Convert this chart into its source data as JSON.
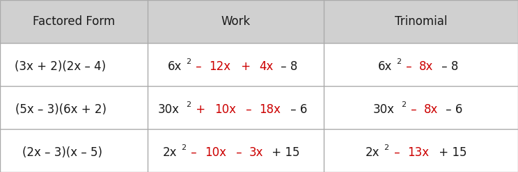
{
  "headers": [
    "Factored Form",
    "Work",
    "Trinomial"
  ],
  "header_bg": "#d0d0d0",
  "table_bg": "#ffffff",
  "border_color": "#aaaaaa",
  "col_boundaries": [
    0.0,
    0.285,
    0.625,
    1.0
  ],
  "black": "#1a1a1a",
  "red": "#cc0000",
  "rows": [
    {
      "col0": [
        {
          "t": "(3x + 2)(2x – 4)",
          "c": "#1a1a1a",
          "s": false
        }
      ],
      "col1": [
        {
          "t": "6x",
          "c": "#1a1a1a",
          "s": false
        },
        {
          "t": "2",
          "c": "#1a1a1a",
          "s": true
        },
        {
          "t": " – ",
          "c": "#cc0000",
          "s": false
        },
        {
          "t": "12x",
          "c": "#cc0000",
          "s": false
        },
        {
          "t": " + ",
          "c": "#cc0000",
          "s": false
        },
        {
          "t": "4x",
          "c": "#cc0000",
          "s": false
        },
        {
          "t": " – 8",
          "c": "#1a1a1a",
          "s": false
        }
      ],
      "col2": [
        {
          "t": "6x",
          "c": "#1a1a1a",
          "s": false
        },
        {
          "t": "2",
          "c": "#1a1a1a",
          "s": true
        },
        {
          "t": " – ",
          "c": "#cc0000",
          "s": false
        },
        {
          "t": "8x",
          "c": "#cc0000",
          "s": false
        },
        {
          "t": " – 8",
          "c": "#1a1a1a",
          "s": false
        }
      ]
    },
    {
      "col0": [
        {
          "t": "(5x – 3)(6x + 2)",
          "c": "#1a1a1a",
          "s": false
        }
      ],
      "col1": [
        {
          "t": "30x",
          "c": "#1a1a1a",
          "s": false
        },
        {
          "t": "2",
          "c": "#1a1a1a",
          "s": true
        },
        {
          "t": " + ",
          "c": "#cc0000",
          "s": false
        },
        {
          "t": "10x",
          "c": "#cc0000",
          "s": false
        },
        {
          "t": " – ",
          "c": "#cc0000",
          "s": false
        },
        {
          "t": "18x",
          "c": "#cc0000",
          "s": false
        },
        {
          "t": " – 6",
          "c": "#1a1a1a",
          "s": false
        }
      ],
      "col2": [
        {
          "t": "30x",
          "c": "#1a1a1a",
          "s": false
        },
        {
          "t": "2",
          "c": "#1a1a1a",
          "s": true
        },
        {
          "t": " – ",
          "c": "#cc0000",
          "s": false
        },
        {
          "t": "8x",
          "c": "#cc0000",
          "s": false
        },
        {
          "t": " – 6",
          "c": "#1a1a1a",
          "s": false
        }
      ]
    },
    {
      "col0": [
        {
          "t": "(2x – 3)(x – 5)",
          "c": "#1a1a1a",
          "s": false
        }
      ],
      "col1": [
        {
          "t": "2x",
          "c": "#1a1a1a",
          "s": false
        },
        {
          "t": "2",
          "c": "#1a1a1a",
          "s": true
        },
        {
          "t": " – ",
          "c": "#cc0000",
          "s": false
        },
        {
          "t": "10x",
          "c": "#cc0000",
          "s": false
        },
        {
          "t": " – ",
          "c": "#cc0000",
          "s": false
        },
        {
          "t": "3x",
          "c": "#cc0000",
          "s": false
        },
        {
          "t": " + 15",
          "c": "#1a1a1a",
          "s": false
        }
      ],
      "col2": [
        {
          "t": "2x",
          "c": "#1a1a1a",
          "s": false
        },
        {
          "t": "2",
          "c": "#1a1a1a",
          "s": true
        },
        {
          "t": " – ",
          "c": "#cc0000",
          "s": false
        },
        {
          "t": "13x",
          "c": "#cc0000",
          "s": false
        },
        {
          "t": " + 15",
          "c": "#1a1a1a",
          "s": false
        }
      ]
    }
  ],
  "figsize": [
    7.44,
    2.48
  ],
  "dpi": 100
}
